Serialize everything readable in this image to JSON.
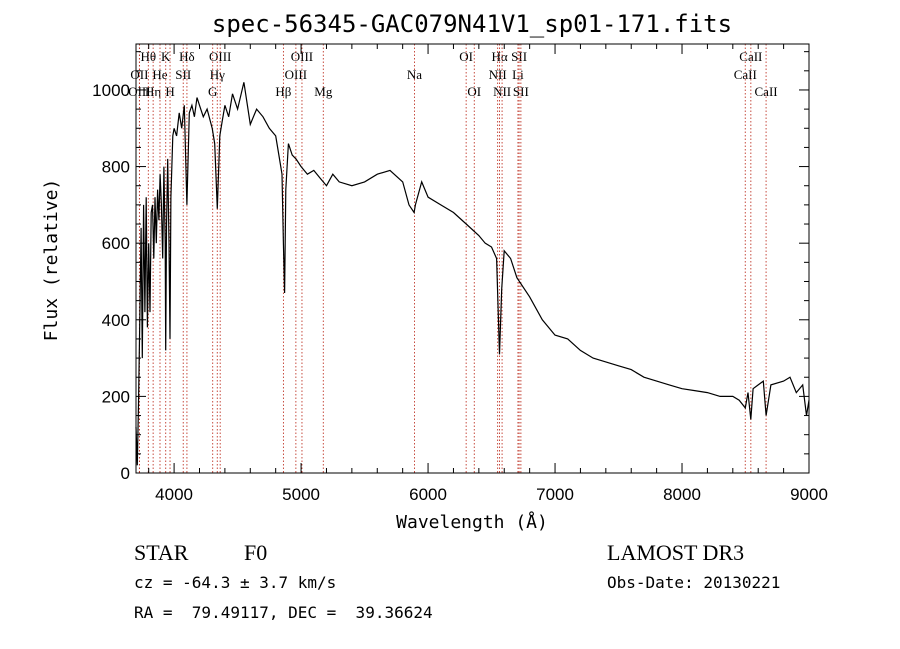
{
  "chart_data": {
    "type": "line",
    "title": "spec-56345-GAC079N41V1_sp01-171.fits",
    "xlabel": "Wavelength (Å)",
    "ylabel": "Flux (relative)",
    "xlim": [
      3700,
      9000
    ],
    "ylim": [
      0,
      1120
    ],
    "grid": false,
    "x_ticks": [
      4000,
      5000,
      6000,
      7000,
      8000,
      9000
    ],
    "y_ticks": [
      0,
      200,
      400,
      600,
      800,
      1000
    ],
    "series": [
      {
        "name": "spectrum",
        "x": [
          3700,
          3710,
          3720,
          3730,
          3740,
          3750,
          3760,
          3770,
          3780,
          3790,
          3800,
          3810,
          3820,
          3830,
          3840,
          3850,
          3860,
          3870,
          3880,
          3890,
          3900,
          3910,
          3920,
          3930,
          3934,
          3940,
          3950,
          3960,
          3968,
          3975,
          3990,
          4000,
          4020,
          4040,
          4060,
          4080,
          4101,
          4120,
          4140,
          4160,
          4180,
          4200,
          4230,
          4260,
          4300,
          4320,
          4340,
          4360,
          4380,
          4400,
          4430,
          4460,
          4500,
          4550,
          4600,
          4650,
          4700,
          4750,
          4800,
          4830,
          4850,
          4861,
          4870,
          4880,
          4900,
          4930,
          4960,
          5000,
          5050,
          5100,
          5150,
          5200,
          5250,
          5300,
          5400,
          5500,
          5600,
          5700,
          5800,
          5850,
          5890,
          5900,
          5950,
          6000,
          6100,
          6200,
          6300,
          6400,
          6450,
          6500,
          6540,
          6563,
          6580,
          6600,
          6650,
          6700,
          6800,
          6900,
          7000,
          7100,
          7200,
          7300,
          7400,
          7500,
          7600,
          7700,
          7800,
          7900,
          8000,
          8100,
          8200,
          8300,
          8400,
          8450,
          8498,
          8520,
          8542,
          8560,
          8600,
          8640,
          8662,
          8700,
          8800,
          8850,
          8900,
          8950,
          8980,
          9000
        ],
        "values": [
          120,
          20,
          180,
          400,
          640,
          300,
          700,
          420,
          720,
          380,
          600,
          420,
          680,
          700,
          560,
          720,
          600,
          740,
          660,
          780,
          700,
          560,
          800,
          600,
          320,
          640,
          820,
          600,
          350,
          720,
          880,
          900,
          880,
          940,
          900,
          960,
          700,
          940,
          960,
          930,
          980,
          960,
          930,
          950,
          900,
          860,
          690,
          880,
          920,
          960,
          930,
          990,
          950,
          1020,
          910,
          950,
          930,
          900,
          880,
          820,
          780,
          600,
          470,
          740,
          860,
          830,
          820,
          800,
          780,
          790,
          770,
          750,
          780,
          760,
          750,
          760,
          780,
          790,
          760,
          700,
          680,
          700,
          760,
          720,
          700,
          680,
          650,
          620,
          600,
          590,
          560,
          310,
          480,
          580,
          560,
          510,
          460,
          400,
          360,
          350,
          320,
          300,
          290,
          280,
          270,
          250,
          240,
          230,
          220,
          215,
          210,
          200,
          200,
          190,
          170,
          210,
          140,
          220,
          230,
          240,
          150,
          230,
          240,
          250,
          210,
          230,
          150,
          190
        ]
      }
    ],
    "lines": [
      {
        "label": "Hθ",
        "x": 3797,
        "row": 0
      },
      {
        "label": "OII",
        "x": 3727,
        "row": 1
      },
      {
        "label": "OIII",
        "x": 3727,
        "row": 2
      },
      {
        "label": "Hη",
        "x": 3835,
        "row": 2
      },
      {
        "label": "He",
        "x": 3889,
        "row": 1
      },
      {
        "label": "K",
        "x": 3934,
        "row": 0
      },
      {
        "label": "H",
        "x": 3968,
        "row": 2
      },
      {
        "label": "SII",
        "x": 4072,
        "row": 1
      },
      {
        "label": "Hδ",
        "x": 4101,
        "row": 0
      },
      {
        "label": "OIII",
        "x": 4363,
        "row": 0
      },
      {
        "label": "Hγ",
        "x": 4340,
        "row": 1
      },
      {
        "label": "G",
        "x": 4304,
        "row": 2
      },
      {
        "label": "Hβ",
        "x": 4861,
        "row": 2
      },
      {
        "label": "OIII",
        "x": 5007,
        "row": 0
      },
      {
        "label": "OIII",
        "x": 4959,
        "row": 1
      },
      {
        "label": "Mg",
        "x": 5175,
        "row": 2
      },
      {
        "label": "Na",
        "x": 5893,
        "row": 1
      },
      {
        "label": "OI",
        "x": 6300,
        "row": 0
      },
      {
        "label": "OI",
        "x": 6364,
        "row": 2
      },
      {
        "label": "Hα",
        "x": 6563,
        "row": 0
      },
      {
        "label": "NII",
        "x": 6548,
        "row": 1
      },
      {
        "label": "NII",
        "x": 6583,
        "row": 2
      },
      {
        "label": "SII",
        "x": 6717,
        "row": 0
      },
      {
        "label": "Li",
        "x": 6708,
        "row": 1
      },
      {
        "label": "SII",
        "x": 6731,
        "row": 2
      },
      {
        "label": "CaII",
        "x": 8542,
        "row": 0
      },
      {
        "label": "CaII",
        "x": 8498,
        "row": 1
      },
      {
        "label": "CaII",
        "x": 8662,
        "row": 2
      }
    ]
  },
  "info": {
    "object_class": "STAR",
    "subclass": "F0",
    "survey": "LAMOST DR3",
    "redshift": "cz = -64.3 ± 3.7 km/s",
    "obs_date": "Obs-Date: 20130221",
    "coords": "RA =  79.49117, DEC =  39.36624"
  }
}
